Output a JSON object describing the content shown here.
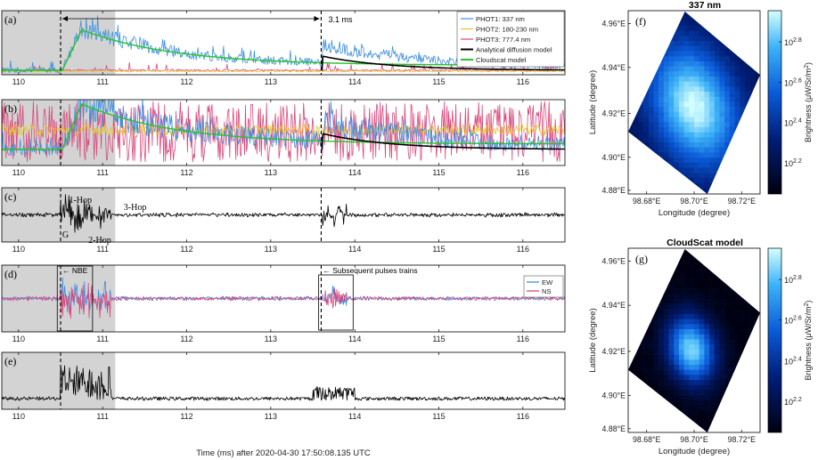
{
  "chart_data": [
    {
      "panel": "(a)",
      "type": "line",
      "x_range": [
        109.8,
        116.5
      ],
      "x_ticks": [
        "110",
        "111",
        "112",
        "113",
        "114",
        "115",
        "116"
      ],
      "shaded_interval": [
        109.8,
        111.15
      ],
      "dashed_markers": [
        110.5,
        113.6
      ],
      "interval_annotation": {
        "from": 110.5,
        "to": 113.6,
        "label": "3.1 ms"
      },
      "legend": [
        {
          "name": "PHOT1: 337 nm",
          "color": "#3c8fe0"
        },
        {
          "name": "PHOT2: 180-230 nm",
          "color": "#e8c32a"
        },
        {
          "name": "PHOT3: 777.4 nm",
          "color": "#d9487c"
        },
        {
          "name": "Analytical diffusion model",
          "color": "#000000"
        },
        {
          "name": "Cloudscat model",
          "color": "#26c426"
        }
      ]
    },
    {
      "panel": "(b)",
      "type": "line",
      "x_range": [
        109.8,
        116.5
      ],
      "x_ticks": [
        "110",
        "111",
        "112",
        "113",
        "114",
        "115",
        "116"
      ],
      "shaded_interval": [
        109.8,
        111.15
      ],
      "dashed_markers": [
        110.5,
        113.6
      ]
    },
    {
      "panel": "(c)",
      "type": "line",
      "x_range": [
        109.8,
        116.5
      ],
      "x_ticks": [
        "110",
        "111",
        "112",
        "113",
        "114",
        "115",
        "116"
      ],
      "shaded_interval": [
        109.8,
        111.15
      ],
      "dashed_markers": [
        110.5,
        113.6
      ],
      "annotations": [
        "1-Hop",
        "3-Hop",
        "G",
        "2-Hop"
      ]
    },
    {
      "panel": "(d)",
      "type": "line",
      "x_range": [
        109.8,
        116.5
      ],
      "x_ticks": [
        "110",
        "111",
        "112",
        "113",
        "114",
        "115",
        "116"
      ],
      "shaded_interval": [
        109.8,
        111.15
      ],
      "dashed_markers": [
        110.5,
        113.6
      ],
      "annotations": [
        "← NBE",
        "← Subsequent pulses trains"
      ],
      "legend": [
        {
          "name": "EW",
          "color": "#3c8fe0"
        },
        {
          "name": "NS",
          "color": "#d9487c"
        }
      ]
    },
    {
      "panel": "(e)",
      "type": "line",
      "x_range": [
        109.8,
        116.5
      ],
      "x_ticks": [
        "110",
        "111",
        "112",
        "113",
        "114",
        "115",
        "116"
      ],
      "shaded_interval": [
        109.8,
        111.15
      ],
      "dashed_markers": [
        110.5
      ],
      "xlabel": "Time (ms) after 2020-04-30 17:50:08.135 UTC"
    },
    {
      "panel": "(f)",
      "type": "heatmap",
      "title": "337 nm",
      "xlabel": "Longitude (degree)",
      "ylabel": "Latitude (degree)",
      "x_ticks": [
        "98.68°E",
        "98.70°E",
        "98.72°E"
      ],
      "y_ticks": [
        "4.96°E",
        "4.94°E",
        "4.92°E",
        "4.90°E",
        "4.88°E"
      ],
      "colorbar_label": "Brightness (μW/Sr/m",
      "colorbar_label_sup": "2",
      "colorbar_label_end": ")",
      "colorbar_ticks": [
        {
          "base": "10",
          "exp": "2.8"
        },
        {
          "base": "10",
          "exp": "2.6"
        },
        {
          "base": "10",
          "exp": "2.4"
        },
        {
          "base": "10",
          "exp": "2.2"
        }
      ]
    },
    {
      "panel": "(g)",
      "type": "heatmap",
      "title": "CloudScat model",
      "xlabel": "Longitude (degree)",
      "ylabel": "Latitude (degree)",
      "x_ticks": [
        "98.68°E",
        "98.70°E",
        "98.72°E"
      ],
      "y_ticks": [
        "4.96°E",
        "4.94°E",
        "4.92°E",
        "4.90°E",
        "4.88°E"
      ],
      "colorbar_label": "Brightness (μW/Sr/m",
      "colorbar_label_sup": "2",
      "colorbar_label_end": ")",
      "colorbar_ticks": [
        {
          "base": "10",
          "exp": "2.8"
        },
        {
          "base": "10",
          "exp": "2.6"
        },
        {
          "base": "10",
          "exp": "2.4"
        },
        {
          "base": "10",
          "exp": "2.2"
        }
      ]
    }
  ]
}
